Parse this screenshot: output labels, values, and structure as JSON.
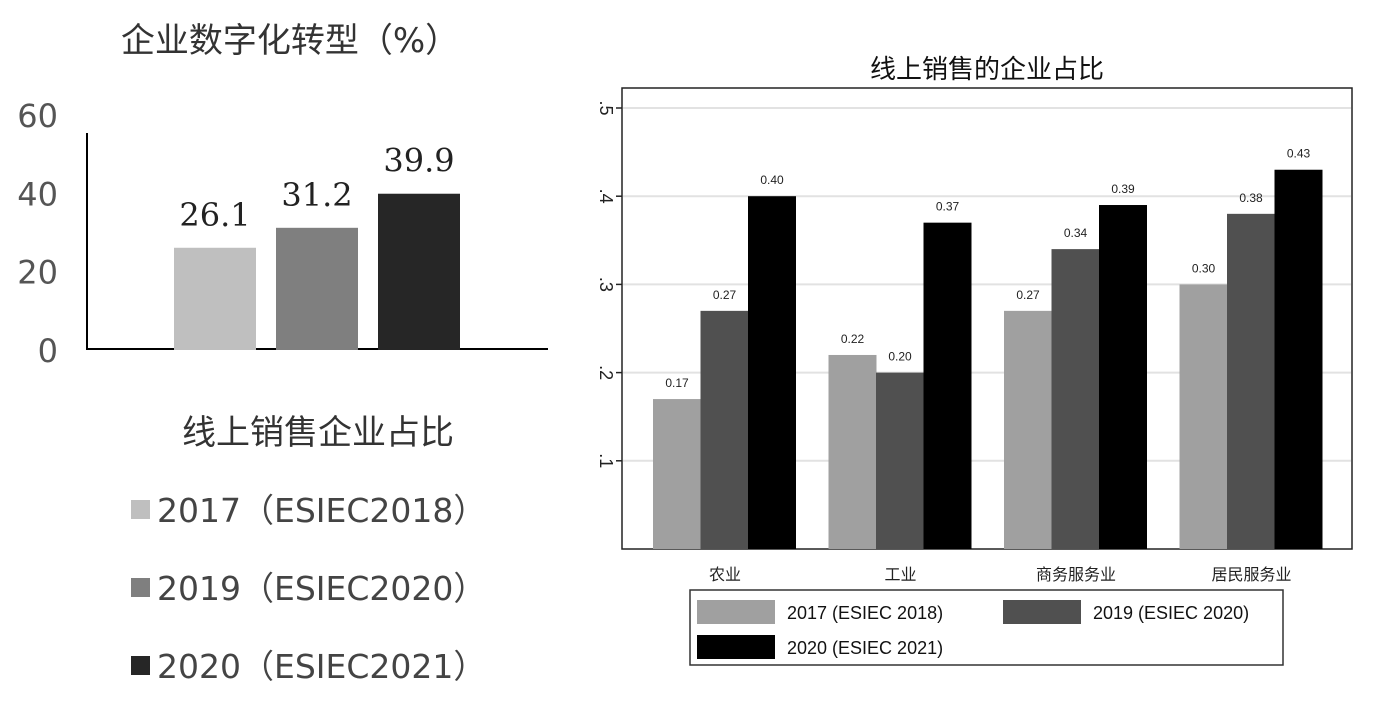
{
  "chart_data": [
    {
      "type": "bar",
      "title": "企业数字化转型（%）",
      "categories": [
        "2017（ESIEC2018）",
        "2019（ESIEC2020）",
        "2020（ESIEC2021）"
      ],
      "values": [
        26.1,
        31.2,
        39.9
      ],
      "data_labels": [
        "26.1",
        "31.2",
        "39.9"
      ],
      "colors": [
        "#bfbfbf",
        "#7f7f7f",
        "#262626"
      ],
      "yticks": [
        "0",
        "20",
        "40",
        "60"
      ],
      "ylim": [
        0,
        60
      ],
      "grid": false,
      "legend_title": "线上销售企业占比",
      "legend": [
        "2017（ESIEC2018）",
        "2019（ESIEC2020）",
        "2020（ESIEC2021）"
      ],
      "legend_placement": "bottom"
    },
    {
      "type": "bar",
      "title": "线上销售的企业占比",
      "categories": [
        "农业",
        "工业",
        "商务服务业",
        "居民服务业"
      ],
      "series": [
        {
          "name": "2017 (ESIEC 2018)",
          "values": [
            0.17,
            0.22,
            0.27,
            0.3
          ],
          "labels": [
            "0.17",
            "0.22",
            "0.27",
            "0.30"
          ],
          "color": "#a0a0a0"
        },
        {
          "name": "2019 (ESIEC 2020)",
          "values": [
            0.27,
            0.2,
            0.34,
            0.38
          ],
          "labels": [
            "0.27",
            "0.20",
            "0.34",
            "0.38"
          ],
          "color": "#505050"
        },
        {
          "name": "2020 (ESIEC 2021)",
          "values": [
            0.4,
            0.37,
            0.39,
            0.43
          ],
          "labels": [
            "0.40",
            "0.37",
            "0.39",
            "0.43"
          ],
          "color": "#000000"
        }
      ],
      "yticks": [
        ".1",
        ".2",
        ".3",
        ".4",
        ".5"
      ],
      "ylim": [
        0,
        0.5
      ],
      "grid": true,
      "legend_placement": "bottom"
    }
  ]
}
